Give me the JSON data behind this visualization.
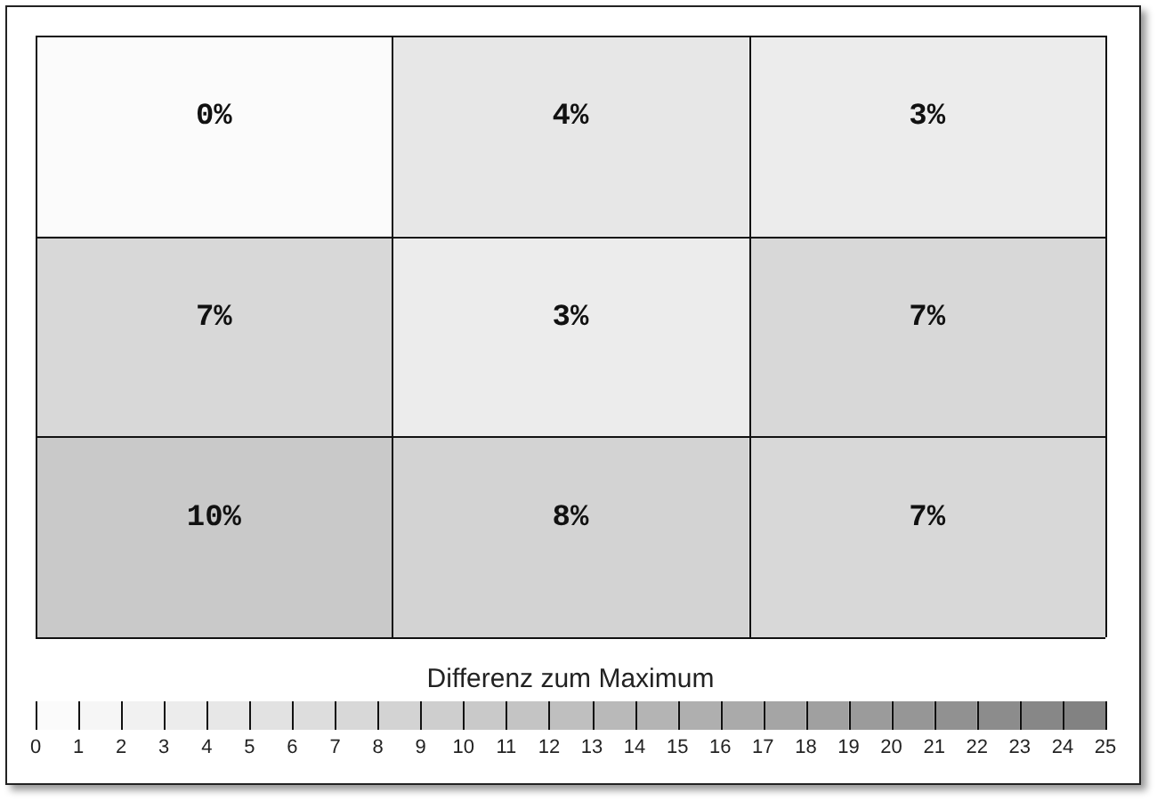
{
  "chart_data": {
    "type": "heatmap",
    "categories": [
      null,
      null,
      null
    ],
    "y_categories": [
      null,
      null,
      null
    ],
    "cells": [
      [
        0,
        4,
        3
      ],
      [
        7,
        3,
        7
      ],
      [
        10,
        8,
        7
      ]
    ],
    "cell_labels": [
      [
        "0%",
        "4%",
        "3%"
      ],
      [
        "7%",
        "3%",
        "7%"
      ],
      [
        "10%",
        "8%",
        "7%"
      ]
    ],
    "clabel": "Differenz zum Maximum",
    "clim": [
      0,
      25
    ],
    "cticks": [
      0,
      1,
      2,
      3,
      4,
      5,
      6,
      7,
      8,
      9,
      10,
      11,
      12,
      13,
      14,
      15,
      16,
      17,
      18,
      19,
      20,
      21,
      22,
      23,
      24,
      25
    ]
  }
}
